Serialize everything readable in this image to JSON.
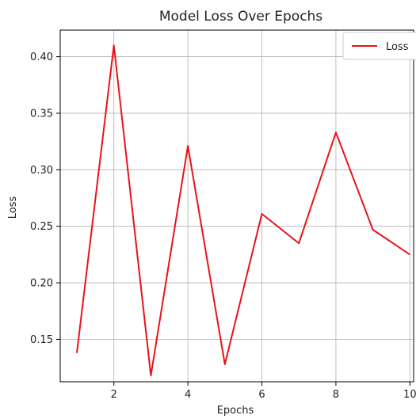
{
  "chart_data": {
    "type": "line",
    "title": "Model Loss Over Epochs",
    "xlabel": "Epochs",
    "ylabel": "Loss",
    "xlim": [
      0.55,
      10.1
    ],
    "ylim": [
      0.1125,
      0.4235
    ],
    "x_ticks": [
      2,
      4,
      6,
      8,
      10
    ],
    "y_ticks": [
      0.15,
      0.2,
      0.25,
      0.3,
      0.35,
      0.4
    ],
    "y_tick_labels": [
      "0.15",
      "0.20",
      "0.25",
      "0.30",
      "0.35",
      "0.40"
    ],
    "grid": true,
    "legend_position": "top-right",
    "series": [
      {
        "name": "Loss",
        "color": "#e8131a",
        "x": [
          1,
          2,
          3,
          4,
          5,
          6,
          7,
          8,
          9,
          10
        ],
        "y": [
          0.138,
          0.41,
          0.118,
          0.321,
          0.128,
          0.261,
          0.235,
          0.333,
          0.247,
          0.225
        ]
      }
    ]
  }
}
